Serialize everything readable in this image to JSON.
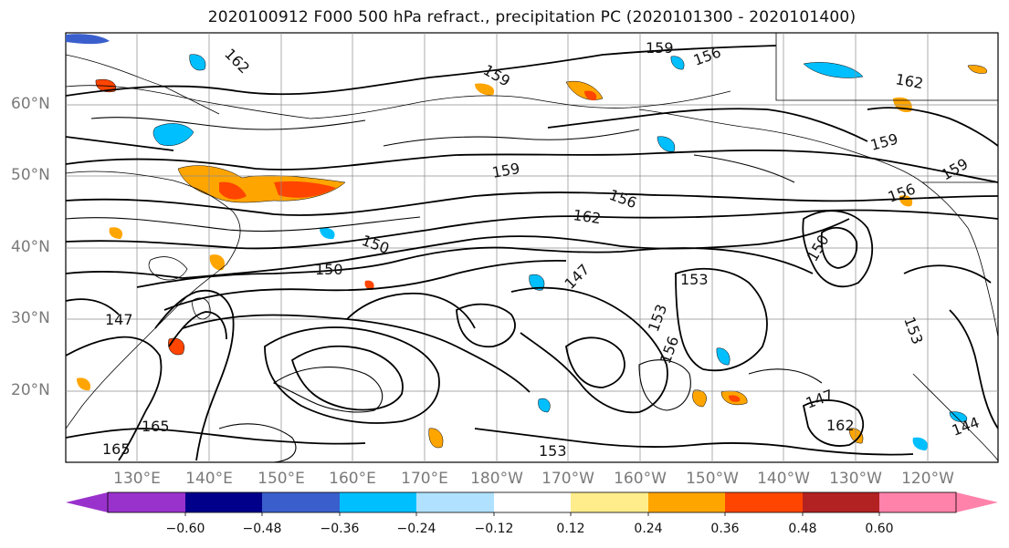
{
  "title": "2020100912 F000 500 hPa refract., precipitation PC (2020101300 - 2020101400)",
  "lat_labels": [
    "60°N",
    "50°N",
    "40°N",
    "30°N",
    "20°N"
  ],
  "lon_labels": [
    "130°E",
    "140°E",
    "150°E",
    "160°E",
    "170°E",
    "180°W",
    "170°W",
    "160°W",
    "150°W",
    "140°W",
    "130°W",
    "120°W"
  ],
  "contour_labels": [
    "162",
    "159",
    "156",
    "162",
    "159",
    "159",
    "156",
    "162",
    "159",
    "156",
    "150",
    "153",
    "147",
    "150",
    "147",
    "153",
    "150",
    "153",
    "156",
    "165",
    "162",
    "147",
    "144",
    "153",
    "165",
    "159"
  ],
  "colorbar": {
    "tick_labels": [
      "−0.60",
      "−0.48",
      "−0.36",
      "−0.24",
      "−0.12",
      "0.12",
      "0.24",
      "0.36",
      "0.48",
      "0.60"
    ],
    "colors": [
      "#9932cc",
      "#00008b",
      "#3a5fcd",
      "#00bfff",
      "#b0e2ff",
      "#ffffff",
      "#ffec8b",
      "#ffa500",
      "#ff4500",
      "#b22222",
      "#ff82ab"
    ]
  },
  "colors": {
    "positive_patch": "#ffa500",
    "negative_patch": "#00bfff",
    "contour": "#000000",
    "grid": "#8c8c8c",
    "coast": "#000000"
  }
}
